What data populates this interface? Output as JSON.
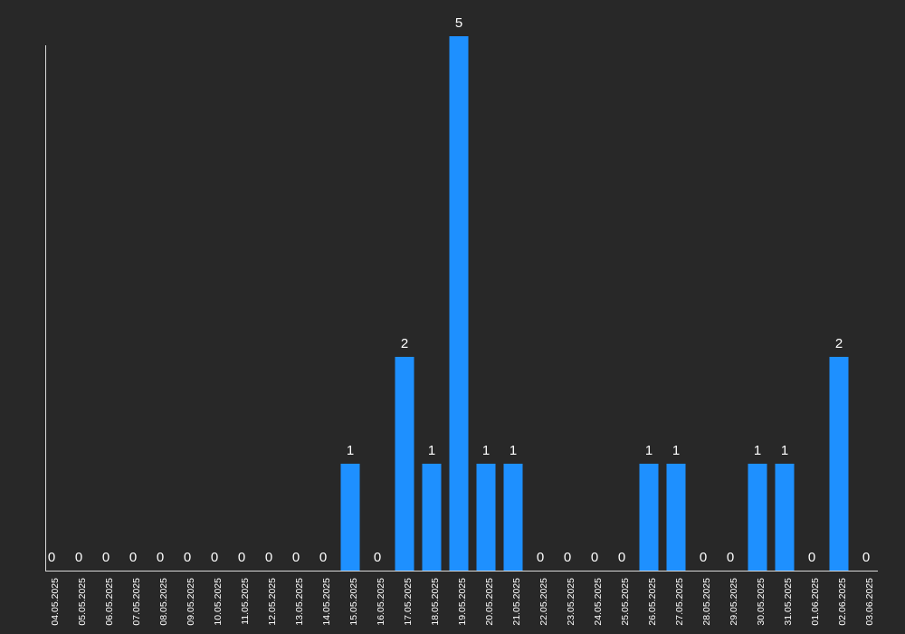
{
  "chart_data": {
    "type": "bar",
    "categories": [
      "04.05.2025",
      "05.05.2025",
      "06.05.2025",
      "07.05.2025",
      "08.05.2025",
      "09.05.2025",
      "10.05.2025",
      "11.05.2025",
      "12.05.2025",
      "13.05.2025",
      "14.05.2025",
      "15.05.2025",
      "16.05.2025",
      "17.05.2025",
      "18.05.2025",
      "19.05.2025",
      "20.05.2025",
      "21.05.2025",
      "22.05.2025",
      "23.05.2025",
      "24.05.2025",
      "25.05.2025",
      "26.05.2025",
      "27.05.2025",
      "28.05.2025",
      "29.05.2025",
      "30.05.2025",
      "31.05.2025",
      "01.06.2025",
      "02.06.2025",
      "03.06.2025"
    ],
    "values": [
      0,
      0,
      0,
      0,
      0,
      0,
      0,
      0,
      0,
      0,
      0,
      1,
      0,
      2,
      1,
      5,
      1,
      1,
      0,
      0,
      0,
      0,
      1,
      1,
      0,
      0,
      1,
      1,
      0,
      2,
      0
    ],
    "title": "",
    "xlabel": "",
    "ylabel": "",
    "ylim": [
      0,
      5
    ],
    "grid": false,
    "data_labels": true,
    "colors": {
      "bar": "#1e90ff",
      "background": "#282828",
      "axis": "#d9d9d9",
      "text": "#ffffff"
    }
  }
}
